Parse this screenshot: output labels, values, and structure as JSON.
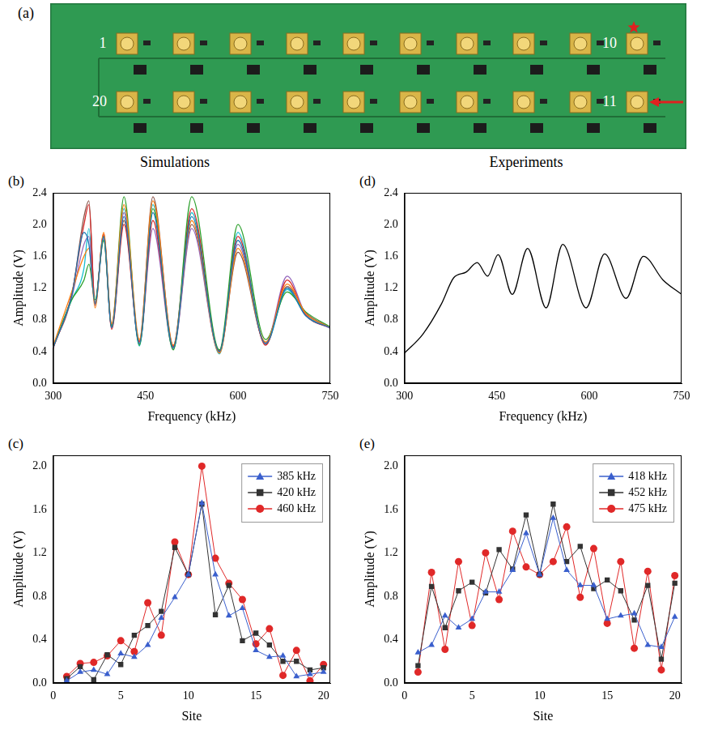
{
  "image": {
    "panel": "(a)",
    "site_labels": [
      "1",
      "10",
      "11",
      "20"
    ]
  },
  "chart_data": [
    {
      "panel": "(b)",
      "title": "Simulations",
      "type": "line",
      "x_label": "Frequency (kHz)",
      "y_label": "Amplitude (V)",
      "xlim": [
        300,
        750
      ],
      "xticks": [
        300,
        450,
        600,
        750
      ],
      "ylim": [
        0,
        2.4
      ],
      "yticks": [
        {
          "value": 0,
          "label": "0.0"
        },
        0.4,
        0.8,
        1.2,
        1.6,
        {
          "value": 2,
          "label": "2.0"
        },
        2.4
      ],
      "grid": false,
      "marker": "none",
      "x": [
        300,
        330,
        350,
        358,
        368,
        382,
        395,
        415,
        440,
        462,
        495,
        525,
        570,
        600,
        645,
        680,
        710,
        750
      ],
      "series": [
        {
          "color": "#1f77b4",
          "values": [
            0.45,
            1.1,
            1.9,
            1.75,
            1.0,
            1.85,
            0.7,
            2.1,
            0.5,
            2.15,
            0.45,
            2.1,
            0.4,
            1.8,
            0.5,
            1.2,
            0.85,
            0.7
          ]
        },
        {
          "color": "#ff7f0e",
          "values": [
            0.47,
            1.15,
            1.6,
            1.7,
            0.95,
            1.9,
            0.75,
            2.25,
            0.55,
            2.3,
            0.48,
            2.05,
            0.38,
            1.7,
            0.52,
            1.25,
            0.88,
            0.7
          ]
        },
        {
          "color": "#2ca02c",
          "values": [
            0.46,
            1.05,
            1.3,
            1.5,
            1.05,
            1.8,
            0.72,
            2.35,
            0.48,
            2.2,
            0.42,
            2.35,
            0.42,
            2.0,
            0.55,
            1.15,
            0.9,
            0.71
          ]
        },
        {
          "color": "#d62728",
          "values": [
            0.44,
            1.12,
            2.0,
            2.25,
            1.0,
            1.88,
            0.68,
            2.0,
            0.52,
            2.05,
            0.47,
            2.2,
            0.4,
            1.85,
            0.48,
            1.3,
            0.86,
            0.7
          ]
        },
        {
          "color": "#9467bd",
          "values": [
            0.45,
            1.08,
            1.75,
            1.85,
            0.98,
            1.82,
            0.7,
            2.15,
            0.5,
            1.95,
            0.44,
            1.95,
            0.39,
            1.75,
            0.5,
            1.35,
            0.87,
            0.69
          ]
        },
        {
          "color": "#8c564b",
          "values": [
            0.46,
            1.1,
            2.1,
            2.3,
            1.02,
            1.86,
            0.74,
            2.05,
            0.53,
            2.35,
            0.46,
            2.0,
            0.41,
            1.65,
            0.51,
            1.22,
            0.89,
            0.7
          ]
        },
        {
          "color": "#17becf",
          "values": [
            0.45,
            1.05,
            1.45,
            1.95,
            1.0,
            1.84,
            0.71,
            2.2,
            0.47,
            2.25,
            0.43,
            2.15,
            0.37,
            1.9,
            0.49,
            1.18,
            0.86,
            0.7
          ]
        }
      ]
    },
    {
      "panel": "(c)",
      "type": "line",
      "x_label": "Site",
      "y_label": "Amplitude (V)",
      "xlim": [
        0,
        20.5
      ],
      "xticks": [
        0,
        5,
        10,
        15,
        20
      ],
      "ylim": [
        0,
        2.1
      ],
      "yticks": [
        {
          "value": 0,
          "label": "0.0"
        },
        0.4,
        0.8,
        1.2,
        1.6,
        {
          "value": 2,
          "label": "2.0"
        }
      ],
      "grid": false,
      "legend": "upper right",
      "x": [
        1,
        2,
        3,
        4,
        5,
        6,
        7,
        8,
        9,
        10,
        11,
        12,
        13,
        14,
        15,
        16,
        17,
        18,
        19,
        20
      ],
      "series": [
        {
          "name": "385 kHz",
          "color": "#3a5fcd",
          "marker": "triangle",
          "values": [
            0.02,
            0.1,
            0.12,
            0.08,
            0.27,
            0.24,
            0.35,
            0.6,
            0.79,
            1.0,
            1.66,
            1.0,
            0.62,
            0.69,
            0.3,
            0.24,
            0.25,
            0.06,
            0.08,
            0.1
          ]
        },
        {
          "name": "420 kHz",
          "color": "#333333",
          "marker": "square",
          "values": [
            0.04,
            0.15,
            0.03,
            0.26,
            0.17,
            0.44,
            0.53,
            0.66,
            1.25,
            1.0,
            1.65,
            0.63,
            0.9,
            0.39,
            0.46,
            0.35,
            0.2,
            0.2,
            0.12,
            0.14
          ]
        },
        {
          "name": "460 kHz",
          "color": "#e02828",
          "marker": "circle",
          "values": [
            0.06,
            0.18,
            0.19,
            0.25,
            0.39,
            0.29,
            0.74,
            0.44,
            1.3,
            1.0,
            2.0,
            1.15,
            0.92,
            0.77,
            0.36,
            0.5,
            0.07,
            0.3,
            0.02,
            0.17
          ]
        }
      ]
    },
    {
      "panel": "(d)",
      "title": "Experiments",
      "type": "line",
      "x_label": "Frequency (kHz)",
      "y_label": "Amplitude (V)",
      "xlim": [
        300,
        750
      ],
      "xticks": [
        300,
        450,
        600,
        750
      ],
      "ylim": [
        0,
        2.4
      ],
      "yticks": [
        {
          "value": 0,
          "label": "0.0"
        },
        0.4,
        0.8,
        1.2,
        1.6,
        {
          "value": 2,
          "label": "2.0"
        },
        2.4
      ],
      "grid": false,
      "marker": "none",
      "x": [
        300,
        330,
        360,
        380,
        400,
        418,
        435,
        452,
        475,
        500,
        530,
        557,
        595,
        625,
        660,
        688,
        720,
        750
      ],
      "series": [
        {
          "color": "#000000",
          "values": [
            0.38,
            0.62,
            1.0,
            1.33,
            1.4,
            1.52,
            1.35,
            1.62,
            1.12,
            1.7,
            0.95,
            1.75,
            0.95,
            1.63,
            1.07,
            1.6,
            1.3,
            1.12
          ]
        }
      ]
    },
    {
      "panel": "(e)",
      "type": "line",
      "x_label": "Site",
      "y_label": "Amplitude (V)",
      "xlim": [
        0,
        20.5
      ],
      "xticks": [
        0,
        5,
        10,
        15,
        20
      ],
      "ylim": [
        0,
        2.1
      ],
      "yticks": [
        {
          "value": 0,
          "label": "0.0"
        },
        0.4,
        0.8,
        1.2,
        1.6,
        {
          "value": 2,
          "label": "2.0"
        }
      ],
      "grid": false,
      "legend": "upper right",
      "x": [
        1,
        2,
        3,
        4,
        5,
        6,
        7,
        8,
        9,
        10,
        11,
        12,
        13,
        14,
        15,
        16,
        17,
        18,
        19,
        20
      ],
      "series": [
        {
          "name": "418 kHz",
          "color": "#3a5fcd",
          "marker": "triangle",
          "values": [
            0.28,
            0.35,
            0.62,
            0.51,
            0.59,
            0.84,
            0.84,
            1.04,
            1.38,
            1.0,
            1.52,
            1.04,
            0.9,
            0.9,
            0.59,
            0.62,
            0.64,
            0.35,
            0.33,
            0.61
          ]
        },
        {
          "name": "452 kHz",
          "color": "#333333",
          "marker": "square",
          "values": [
            0.16,
            0.89,
            0.51,
            0.85,
            0.93,
            0.83,
            1.23,
            1.05,
            1.55,
            1.0,
            1.65,
            1.12,
            1.26,
            0.87,
            0.95,
            0.85,
            0.58,
            0.9,
            0.22,
            0.92
          ]
        },
        {
          "name": "475 kHz",
          "color": "#e02828",
          "marker": "circle",
          "values": [
            0.1,
            1.02,
            0.31,
            1.12,
            0.53,
            1.2,
            0.77,
            1.4,
            1.07,
            1.0,
            1.12,
            1.44,
            0.79,
            1.24,
            0.55,
            1.12,
            0.32,
            1.03,
            0.12,
            0.99
          ]
        }
      ]
    }
  ]
}
